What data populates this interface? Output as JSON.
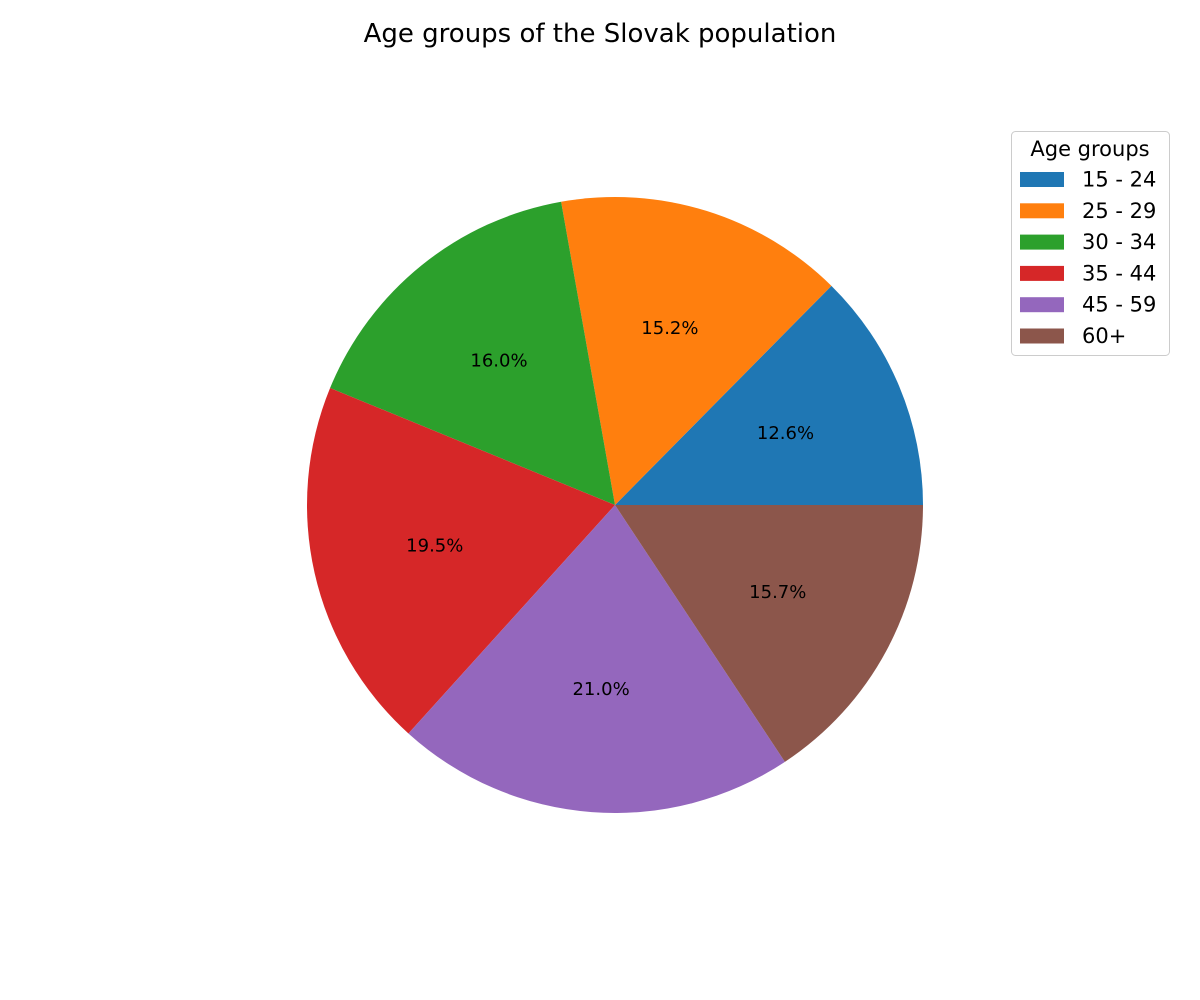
{
  "chart_data": {
    "type": "pie",
    "title": "Age groups of the Slovak population",
    "categories": [
      "15 - 24",
      "25 - 29",
      "30 - 34",
      "35 - 44",
      "45 - 59",
      "60+"
    ],
    "values": [
      12.6,
      15.2,
      16.0,
      19.5,
      21.0,
      15.7
    ],
    "value_labels": [
      "12.6%",
      "15.2%",
      "16.0%",
      "19.5%",
      "21.0%",
      "15.7%"
    ],
    "colors": [
      "#1f77b4",
      "#ff7f0e",
      "#2ca02c",
      "#d62728",
      "#9467bd",
      "#8c564b"
    ],
    "start_angle_deg": 0,
    "direction": "counterclockwise",
    "legend": {
      "title": "Age groups",
      "placement": "top-right"
    }
  }
}
